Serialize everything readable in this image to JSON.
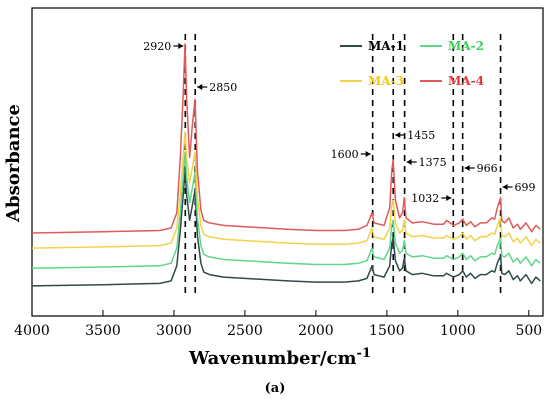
{
  "chart_data": {
    "type": "line",
    "xlabel": "Wavenumber/cm",
    "xlabel_superscript": "-1",
    "ylabel": "Absorbance",
    "caption": "(a)",
    "xlim": [
      4000,
      400
    ],
    "x_ticks": [
      4000,
      3500,
      3000,
      2500,
      2000,
      1500,
      1000,
      500
    ],
    "y_ticks": "none",
    "grid": false,
    "legend_placement": "top-right",
    "series": [
      {
        "name": "MA-1",
        "color": "#2f4a4a",
        "legend_color": "#000000",
        "baseline": 0.04,
        "points": [
          [
            4000,
            0.04
          ],
          [
            3500,
            0.045
          ],
          [
            3100,
            0.05
          ],
          [
            3020,
            0.06
          ],
          [
            2980,
            0.12
          ],
          [
            2955,
            0.26
          ],
          [
            2935,
            0.4
          ],
          [
            2922,
            0.5
          ],
          [
            2910,
            0.4
          ],
          [
            2890,
            0.3
          ],
          [
            2870,
            0.36
          ],
          [
            2852,
            0.42
          ],
          [
            2835,
            0.24
          ],
          [
            2810,
            0.13
          ],
          [
            2790,
            0.095
          ],
          [
            2750,
            0.085
          ],
          [
            2650,
            0.075
          ],
          [
            2500,
            0.07
          ],
          [
            2200,
            0.06
          ],
          [
            2000,
            0.055
          ],
          [
            1800,
            0.055
          ],
          [
            1700,
            0.06
          ],
          [
            1640,
            0.07
          ],
          [
            1605,
            0.12
          ],
          [
            1590,
            0.085
          ],
          [
            1520,
            0.075
          ],
          [
            1480,
            0.12
          ],
          [
            1465,
            0.21
          ],
          [
            1455,
            0.23
          ],
          [
            1440,
            0.14
          ],
          [
            1410,
            0.1
          ],
          [
            1390,
            0.11
          ],
          [
            1377,
            0.15
          ],
          [
            1365,
            0.1
          ],
          [
            1320,
            0.085
          ],
          [
            1250,
            0.09
          ],
          [
            1170,
            0.08
          ],
          [
            1100,
            0.08
          ],
          [
            1080,
            0.09
          ],
          [
            1030,
            0.075
          ],
          [
            990,
            0.085
          ],
          [
            966,
            0.1
          ],
          [
            940,
            0.075
          ],
          [
            910,
            0.09
          ],
          [
            880,
            0.07
          ],
          [
            840,
            0.085
          ],
          [
            800,
            0.085
          ],
          [
            760,
            0.1
          ],
          [
            740,
            0.095
          ],
          [
            722,
            0.13
          ],
          [
            699,
            0.16
          ],
          [
            690,
            0.09
          ],
          [
            670,
            0.085
          ],
          [
            640,
            0.1
          ],
          [
            610,
            0.065
          ],
          [
            580,
            0.08
          ],
          [
            560,
            0.06
          ],
          [
            520,
            0.085
          ],
          [
            480,
            0.05
          ],
          [
            450,
            0.075
          ],
          [
            420,
            0.06
          ]
        ]
      },
      {
        "name": "MA-2",
        "color": "#5fd68a",
        "legend_color": "#3ecf5a",
        "baseline": 0.11,
        "points": [
          [
            4000,
            0.11
          ],
          [
            3500,
            0.115
          ],
          [
            3100,
            0.12
          ],
          [
            3020,
            0.13
          ],
          [
            2980,
            0.19
          ],
          [
            2955,
            0.33
          ],
          [
            2935,
            0.47
          ],
          [
            2922,
            0.57
          ],
          [
            2910,
            0.47
          ],
          [
            2890,
            0.37
          ],
          [
            2870,
            0.43
          ],
          [
            2852,
            0.49
          ],
          [
            2835,
            0.31
          ],
          [
            2810,
            0.2
          ],
          [
            2790,
            0.165
          ],
          [
            2750,
            0.155
          ],
          [
            2650,
            0.145
          ],
          [
            2500,
            0.14
          ],
          [
            2200,
            0.13
          ],
          [
            2000,
            0.125
          ],
          [
            1800,
            0.125
          ],
          [
            1700,
            0.13
          ],
          [
            1640,
            0.14
          ],
          [
            1605,
            0.19
          ],
          [
            1590,
            0.155
          ],
          [
            1520,
            0.145
          ],
          [
            1480,
            0.19
          ],
          [
            1465,
            0.28
          ],
          [
            1455,
            0.3
          ],
          [
            1440,
            0.21
          ],
          [
            1410,
            0.17
          ],
          [
            1390,
            0.18
          ],
          [
            1377,
            0.22
          ],
          [
            1365,
            0.17
          ],
          [
            1320,
            0.155
          ],
          [
            1250,
            0.16
          ],
          [
            1170,
            0.15
          ],
          [
            1100,
            0.15
          ],
          [
            1080,
            0.16
          ],
          [
            1030,
            0.145
          ],
          [
            990,
            0.155
          ],
          [
            966,
            0.17
          ],
          [
            940,
            0.145
          ],
          [
            910,
            0.16
          ],
          [
            880,
            0.14
          ],
          [
            840,
            0.155
          ],
          [
            800,
            0.155
          ],
          [
            760,
            0.17
          ],
          [
            740,
            0.165
          ],
          [
            722,
            0.2
          ],
          [
            699,
            0.23
          ],
          [
            690,
            0.16
          ],
          [
            670,
            0.155
          ],
          [
            640,
            0.17
          ],
          [
            610,
            0.135
          ],
          [
            580,
            0.15
          ],
          [
            560,
            0.13
          ],
          [
            520,
            0.155
          ],
          [
            480,
            0.12
          ],
          [
            450,
            0.145
          ],
          [
            420,
            0.13
          ]
        ]
      },
      {
        "name": "MA-3",
        "color": "#f2d24a",
        "legend_color": "#f2c818",
        "baseline": 0.19,
        "points": [
          [
            4000,
            0.19
          ],
          [
            3500,
            0.195
          ],
          [
            3100,
            0.2
          ],
          [
            3020,
            0.21
          ],
          [
            2980,
            0.27
          ],
          [
            2955,
            0.41
          ],
          [
            2935,
            0.55
          ],
          [
            2922,
            0.65
          ],
          [
            2910,
            0.55
          ],
          [
            2890,
            0.45
          ],
          [
            2870,
            0.51
          ],
          [
            2852,
            0.57
          ],
          [
            2835,
            0.39
          ],
          [
            2810,
            0.28
          ],
          [
            2790,
            0.245
          ],
          [
            2750,
            0.235
          ],
          [
            2650,
            0.225
          ],
          [
            2500,
            0.22
          ],
          [
            2200,
            0.21
          ],
          [
            2000,
            0.205
          ],
          [
            1800,
            0.205
          ],
          [
            1700,
            0.21
          ],
          [
            1640,
            0.22
          ],
          [
            1605,
            0.27
          ],
          [
            1590,
            0.235
          ],
          [
            1520,
            0.225
          ],
          [
            1480,
            0.27
          ],
          [
            1465,
            0.36
          ],
          [
            1455,
            0.38
          ],
          [
            1440,
            0.29
          ],
          [
            1410,
            0.25
          ],
          [
            1390,
            0.26
          ],
          [
            1377,
            0.3
          ],
          [
            1365,
            0.25
          ],
          [
            1320,
            0.235
          ],
          [
            1250,
            0.24
          ],
          [
            1170,
            0.23
          ],
          [
            1100,
            0.23
          ],
          [
            1080,
            0.24
          ],
          [
            1030,
            0.225
          ],
          [
            990,
            0.235
          ],
          [
            966,
            0.25
          ],
          [
            940,
            0.225
          ],
          [
            910,
            0.24
          ],
          [
            880,
            0.22
          ],
          [
            840,
            0.235
          ],
          [
            800,
            0.235
          ],
          [
            760,
            0.25
          ],
          [
            740,
            0.245
          ],
          [
            722,
            0.28
          ],
          [
            699,
            0.31
          ],
          [
            690,
            0.24
          ],
          [
            670,
            0.235
          ],
          [
            640,
            0.25
          ],
          [
            610,
            0.215
          ],
          [
            580,
            0.23
          ],
          [
            560,
            0.21
          ],
          [
            520,
            0.235
          ],
          [
            480,
            0.2
          ],
          [
            450,
            0.225
          ],
          [
            420,
            0.21
          ]
        ]
      },
      {
        "name": "MA-4",
        "color": "#e05a5a",
        "legend_color": "#e03a3a",
        "baseline": 0.25,
        "points": [
          [
            4000,
            0.25
          ],
          [
            3500,
            0.255
          ],
          [
            3100,
            0.26
          ],
          [
            3020,
            0.27
          ],
          [
            2980,
            0.33
          ],
          [
            2955,
            0.55
          ],
          [
            2935,
            0.8
          ],
          [
            2922,
            1.0
          ],
          [
            2910,
            0.78
          ],
          [
            2890,
            0.55
          ],
          [
            2870,
            0.68
          ],
          [
            2852,
            0.78
          ],
          [
            2835,
            0.5
          ],
          [
            2810,
            0.34
          ],
          [
            2790,
            0.3
          ],
          [
            2750,
            0.29
          ],
          [
            2650,
            0.28
          ],
          [
            2500,
            0.275
          ],
          [
            2200,
            0.265
          ],
          [
            2000,
            0.26
          ],
          [
            1800,
            0.26
          ],
          [
            1700,
            0.265
          ],
          [
            1640,
            0.28
          ],
          [
            1605,
            0.33
          ],
          [
            1590,
            0.29
          ],
          [
            1520,
            0.28
          ],
          [
            1480,
            0.35
          ],
          [
            1465,
            0.5
          ],
          [
            1455,
            0.54
          ],
          [
            1440,
            0.38
          ],
          [
            1410,
            0.31
          ],
          [
            1390,
            0.33
          ],
          [
            1377,
            0.39
          ],
          [
            1365,
            0.31
          ],
          [
            1320,
            0.29
          ],
          [
            1250,
            0.295
          ],
          [
            1170,
            0.285
          ],
          [
            1100,
            0.285
          ],
          [
            1080,
            0.3
          ],
          [
            1030,
            0.28
          ],
          [
            990,
            0.29
          ],
          [
            966,
            0.305
          ],
          [
            940,
            0.28
          ],
          [
            910,
            0.295
          ],
          [
            880,
            0.275
          ],
          [
            840,
            0.29
          ],
          [
            800,
            0.29
          ],
          [
            760,
            0.31
          ],
          [
            740,
            0.305
          ],
          [
            722,
            0.35
          ],
          [
            699,
            0.39
          ],
          [
            690,
            0.3
          ],
          [
            670,
            0.29
          ],
          [
            640,
            0.31
          ],
          [
            610,
            0.27
          ],
          [
            580,
            0.285
          ],
          [
            560,
            0.265
          ],
          [
            520,
            0.29
          ],
          [
            480,
            0.255
          ],
          [
            450,
            0.28
          ],
          [
            420,
            0.265
          ]
        ]
      }
    ],
    "annotations": [
      {
        "label": "2920",
        "wavenumber": 2920,
        "arrow": "right",
        "side": "left"
      },
      {
        "label": "2850",
        "wavenumber": 2850,
        "arrow": "left",
        "side": "right"
      },
      {
        "label": "1600",
        "wavenumber": 1600,
        "arrow": "right",
        "side": "left"
      },
      {
        "label": "1455",
        "wavenumber": 1455,
        "arrow": "left",
        "side": "right"
      },
      {
        "label": "1375",
        "wavenumber": 1375,
        "arrow": "left",
        "side": "right"
      },
      {
        "label": "1032",
        "wavenumber": 1032,
        "arrow": "right",
        "side": "left"
      },
      {
        "label": "966",
        "wavenumber": 966,
        "arrow": "left",
        "side": "right"
      },
      {
        "label": "699",
        "wavenumber": 699,
        "arrow": "left",
        "side": "right"
      }
    ]
  }
}
